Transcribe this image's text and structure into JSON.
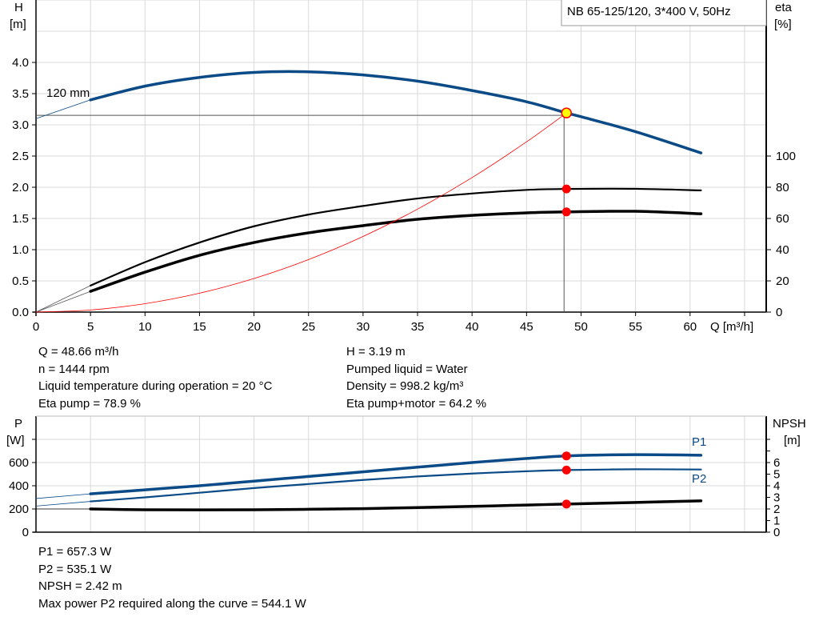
{
  "chart_data": [
    {
      "type": "line",
      "title": "NB 65-125/120, 3*400 V, 50Hz",
      "xlabel": "Q [m³/h]",
      "ylabel": "H\n[m]",
      "ylabel_lines": [
        "H",
        "[m]"
      ],
      "y2label_lines": [
        "eta",
        "[%]"
      ],
      "xlim": [
        0,
        67
      ],
      "ylim": [
        0,
        5.0
      ],
      "y2lim": [
        0,
        256
      ],
      "xticks": [
        0,
        5,
        10,
        15,
        20,
        25,
        30,
        35,
        40,
        45,
        50,
        55,
        60
      ],
      "yticks": [
        "0.0",
        "0.5",
        "1.0",
        "1.5",
        "2.0",
        "2.5",
        "3.0",
        "3.5",
        "4.0"
      ],
      "y2ticks": [
        0,
        20,
        40,
        60,
        80,
        100
      ],
      "grid": true,
      "series": [
        {
          "key": "head",
          "label": "120 mm",
          "axis": "left",
          "color": "#0a4a86",
          "x": [
            5,
            10,
            15,
            20,
            25,
            30,
            35,
            40,
            45,
            48.66,
            50,
            55,
            61
          ],
          "y": [
            3.4,
            3.62,
            3.76,
            3.84,
            3.85,
            3.8,
            3.7,
            3.55,
            3.37,
            3.19,
            3.13,
            2.89,
            2.55
          ],
          "extension_y_at_0": 3.1
        },
        {
          "key": "eta_pump",
          "axis": "right",
          "color": "#000000",
          "x": [
            5,
            10,
            15,
            20,
            25,
            30,
            35,
            40,
            45,
            48.66,
            55,
            61
          ],
          "y": [
            17,
            32,
            44.6,
            55,
            62.5,
            68,
            72.8,
            76,
            78.3,
            78.9,
            79,
            78
          ],
          "extension_y_at_0": 0
        },
        {
          "key": "eta_pump_motor",
          "axis": "right",
          "color": "#000000",
          "x": [
            5,
            10,
            15,
            20,
            25,
            30,
            35,
            40,
            45,
            48.66,
            55,
            61
          ],
          "y": [
            13.3,
            25.6,
            36.4,
            44.6,
            50.8,
            55.4,
            59.5,
            62,
            63.6,
            64.2,
            64.6,
            63
          ],
          "extension_y_at_0": 0
        },
        {
          "key": "system_curve",
          "axis": "left",
          "color": "#ff0000",
          "x": [
            0,
            5,
            10,
            15,
            20,
            25,
            30,
            35,
            40,
            45,
            48.66
          ],
          "y": [
            0,
            0.034,
            0.135,
            0.303,
            0.539,
            0.842,
            1.212,
            1.65,
            2.155,
            2.728,
            3.19
          ]
        }
      ],
      "duty_point": {
        "Q": 48.66,
        "H": 3.19,
        "eta_pump": 78.9,
        "eta_pump_motor": 64.2,
        "color": "#ffff00"
      }
    },
    {
      "type": "line",
      "ylabel_lines": [
        "P",
        "[W]"
      ],
      "y2label_lines": [
        "NPSH",
        "[m]"
      ],
      "xlim": [
        0,
        67
      ],
      "ylim": [
        0,
        1000
      ],
      "y2lim": [
        0,
        10
      ],
      "yticks": [
        0,
        200,
        400,
        600
      ],
      "y2ticks": [
        0,
        1,
        2,
        3,
        4,
        5,
        6
      ],
      "grid": true,
      "series": [
        {
          "key": "p1",
          "name": "P1",
          "axis": "left",
          "color": "#0a4a86",
          "x": [
            5,
            10,
            15,
            20,
            25,
            30,
            35,
            40,
            45,
            48.66,
            55,
            61
          ],
          "y": [
            330,
            365,
            400,
            440,
            480,
            520,
            560,
            600,
            635,
            657.3,
            668,
            663
          ],
          "extension_y_at_0": 290
        },
        {
          "key": "p2",
          "name": "P2",
          "axis": "left",
          "color": "#0a4a86",
          "x": [
            5,
            10,
            15,
            20,
            25,
            30,
            35,
            40,
            45,
            48.66,
            55,
            61
          ],
          "y": [
            265,
            300,
            340,
            380,
            415,
            450,
            480,
            505,
            525,
            535.1,
            542,
            540
          ],
          "extension_y_at_0": 225
        },
        {
          "key": "npsh",
          "axis": "right",
          "color": "#000000",
          "x": [
            5,
            10,
            15,
            20,
            25,
            30,
            35,
            40,
            45,
            48.66,
            55,
            61
          ],
          "y": [
            2.0,
            1.93,
            1.92,
            1.93,
            1.97,
            2.03,
            2.12,
            2.22,
            2.34,
            2.42,
            2.56,
            2.7
          ],
          "extension_y_at_0": 2.0
        }
      ],
      "duty_point": {
        "Q": 48.66,
        "P1": 657.3,
        "P2": 535.1,
        "NPSH": 2.42
      }
    }
  ],
  "info_top": {
    "left": [
      "Q = 48.66 m³/h",
      "n = 1444 rpm",
      "Liquid temperature during operation = 20 °C",
      "Eta pump = 78.9 %"
    ],
    "right": [
      "H = 3.19 m",
      "Pumped liquid = Water",
      "Density = 998.2 kg/m³",
      "Eta pump+motor = 64.2 %"
    ]
  },
  "info_bottom": [
    "P1 = 657.3 W",
    "P2 = 535.1 W",
    "NPSH = 2.42 m",
    "Max power P2 required along the curve = 544.1 W"
  ]
}
